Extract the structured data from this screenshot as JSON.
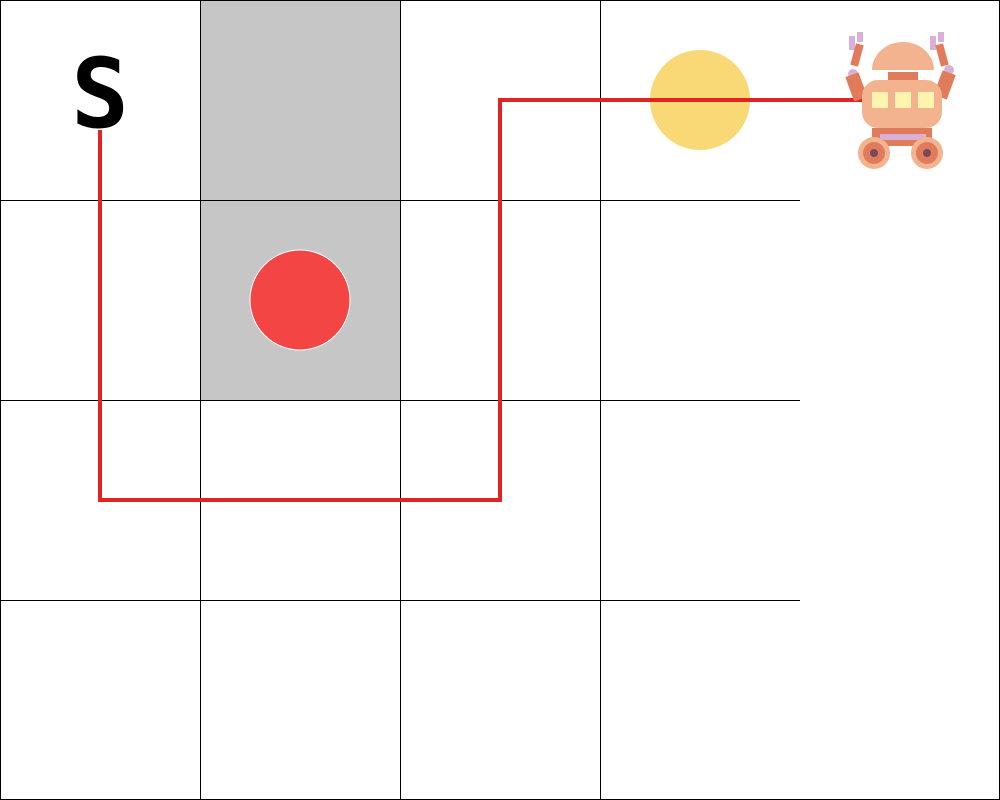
{
  "game": {
    "grid": {
      "columns": 5,
      "rows": 4
    },
    "start_label": "S",
    "walls": [
      {
        "col": 1,
        "row": 0
      },
      {
        "col": 1,
        "row": 1
      }
    ],
    "red_marker": {
      "col": 1,
      "row": 1
    },
    "goal_coin": {
      "col": 3,
      "row": 0
    },
    "robot": {
      "col": 4,
      "row": 0
    },
    "path_cells": [
      [
        0,
        0
      ],
      [
        0,
        2
      ],
      [
        2,
        2
      ],
      [
        2,
        0
      ],
      [
        4,
        0
      ]
    ],
    "colors": {
      "path": "#e02424",
      "red_marker": "#f44545",
      "coin": "#f9d976",
      "wall": "#c6c6c6",
      "robot_body": "#f3b38f",
      "robot_accent": "#e07c5c",
      "robot_window": "#fff3b0",
      "robot_claw": "#d8b0d8"
    }
  }
}
